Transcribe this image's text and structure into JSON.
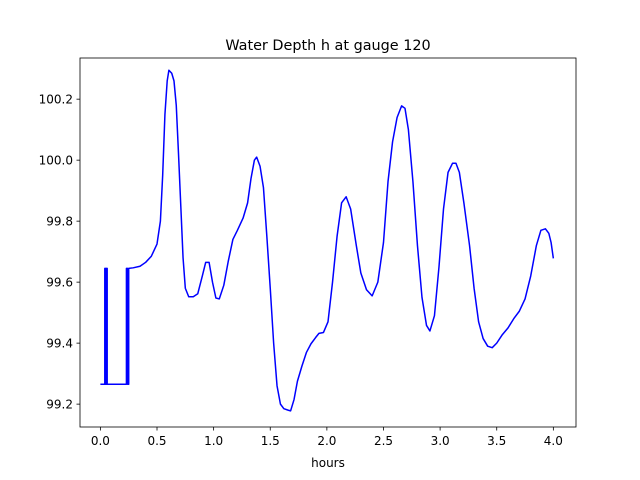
{
  "chart_data": {
    "type": "line",
    "title": "Water Depth h at gauge 120",
    "xlabel": "hours",
    "ylabel": "",
    "xlim": [
      -0.18,
      4.2
    ],
    "ylim": [
      99.125,
      100.335
    ],
    "xticks": [
      0.0,
      0.5,
      1.0,
      1.5,
      2.0,
      2.5,
      3.0,
      3.5,
      4.0
    ],
    "xtick_labels": [
      "0.0",
      "0.5",
      "1.0",
      "1.5",
      "2.0",
      "2.5",
      "3.0",
      "3.5",
      "4.0"
    ],
    "yticks": [
      99.2,
      99.4,
      99.6,
      99.8,
      100.0,
      100.2
    ],
    "ytick_labels": [
      "99.2",
      "99.4",
      "99.6",
      "99.8",
      "100.0",
      "100.2"
    ],
    "grid": false,
    "series": [
      {
        "color": "#0000ff",
        "points": [
          [
            0.0,
            99.265
          ],
          [
            0.039,
            99.265
          ],
          [
            0.039,
            99.645
          ],
          [
            0.046,
            99.645
          ],
          [
            0.046,
            99.265
          ],
          [
            0.053,
            99.265
          ],
          [
            0.053,
            99.645
          ],
          [
            0.06,
            99.645
          ],
          [
            0.06,
            99.265
          ],
          [
            0.23,
            99.265
          ],
          [
            0.23,
            99.645
          ],
          [
            0.24,
            99.645
          ],
          [
            0.24,
            99.265
          ],
          [
            0.25,
            99.265
          ],
          [
            0.25,
            99.645
          ],
          [
            0.29,
            99.647
          ],
          [
            0.35,
            99.652
          ],
          [
            0.4,
            99.665
          ],
          [
            0.45,
            99.685
          ],
          [
            0.5,
            99.725
          ],
          [
            0.53,
            99.8
          ],
          [
            0.55,
            99.95
          ],
          [
            0.57,
            100.15
          ],
          [
            0.59,
            100.26
          ],
          [
            0.605,
            100.295
          ],
          [
            0.63,
            100.285
          ],
          [
            0.65,
            100.26
          ],
          [
            0.67,
            100.18
          ],
          [
            0.69,
            100.02
          ],
          [
            0.71,
            99.85
          ],
          [
            0.73,
            99.68
          ],
          [
            0.75,
            99.58
          ],
          [
            0.78,
            99.552
          ],
          [
            0.82,
            99.552
          ],
          [
            0.86,
            99.562
          ],
          [
            0.9,
            99.62
          ],
          [
            0.93,
            99.665
          ],
          [
            0.96,
            99.665
          ],
          [
            0.99,
            99.6
          ],
          [
            1.02,
            99.548
          ],
          [
            1.05,
            99.545
          ],
          [
            1.09,
            99.59
          ],
          [
            1.13,
            99.67
          ],
          [
            1.17,
            99.74
          ],
          [
            1.21,
            99.77
          ],
          [
            1.26,
            99.81
          ],
          [
            1.3,
            99.86
          ],
          [
            1.33,
            99.94
          ],
          [
            1.36,
            100.0
          ],
          [
            1.38,
            100.01
          ],
          [
            1.41,
            99.98
          ],
          [
            1.44,
            99.91
          ],
          [
            1.47,
            99.75
          ],
          [
            1.5,
            99.58
          ],
          [
            1.53,
            99.4
          ],
          [
            1.56,
            99.26
          ],
          [
            1.59,
            99.2
          ],
          [
            1.62,
            99.185
          ],
          [
            1.66,
            99.18
          ],
          [
            1.68,
            99.178
          ],
          [
            1.71,
            99.215
          ],
          [
            1.74,
            99.275
          ],
          [
            1.78,
            99.325
          ],
          [
            1.82,
            99.37
          ],
          [
            1.86,
            99.398
          ],
          [
            1.9,
            99.418
          ],
          [
            1.93,
            99.432
          ],
          [
            1.97,
            99.435
          ],
          [
            2.01,
            99.47
          ],
          [
            2.05,
            99.6
          ],
          [
            2.09,
            99.75
          ],
          [
            2.13,
            99.86
          ],
          [
            2.17,
            99.88
          ],
          [
            2.21,
            99.84
          ],
          [
            2.26,
            99.72
          ],
          [
            2.3,
            99.63
          ],
          [
            2.35,
            99.575
          ],
          [
            2.4,
            99.555
          ],
          [
            2.45,
            99.6
          ],
          [
            2.5,
            99.73
          ],
          [
            2.54,
            99.93
          ],
          [
            2.58,
            100.06
          ],
          [
            2.62,
            100.14
          ],
          [
            2.66,
            100.178
          ],
          [
            2.69,
            100.17
          ],
          [
            2.72,
            100.1
          ],
          [
            2.76,
            99.93
          ],
          [
            2.8,
            99.72
          ],
          [
            2.84,
            99.55
          ],
          [
            2.88,
            99.458
          ],
          [
            2.91,
            99.44
          ],
          [
            2.95,
            99.49
          ],
          [
            2.99,
            99.65
          ],
          [
            3.03,
            99.84
          ],
          [
            3.07,
            99.96
          ],
          [
            3.11,
            99.99
          ],
          [
            3.14,
            99.99
          ],
          [
            3.17,
            99.96
          ],
          [
            3.21,
            99.86
          ],
          [
            3.26,
            99.72
          ],
          [
            3.3,
            99.58
          ],
          [
            3.34,
            99.47
          ],
          [
            3.38,
            99.415
          ],
          [
            3.42,
            99.39
          ],
          [
            3.46,
            99.385
          ],
          [
            3.5,
            99.4
          ],
          [
            3.55,
            99.428
          ],
          [
            3.6,
            99.45
          ],
          [
            3.65,
            99.48
          ],
          [
            3.7,
            99.505
          ],
          [
            3.75,
            99.545
          ],
          [
            3.8,
            99.62
          ],
          [
            3.85,
            99.72
          ],
          [
            3.89,
            99.77
          ],
          [
            3.93,
            99.775
          ],
          [
            3.96,
            99.76
          ],
          [
            3.98,
            99.73
          ],
          [
            4.0,
            99.678
          ]
        ]
      }
    ]
  }
}
